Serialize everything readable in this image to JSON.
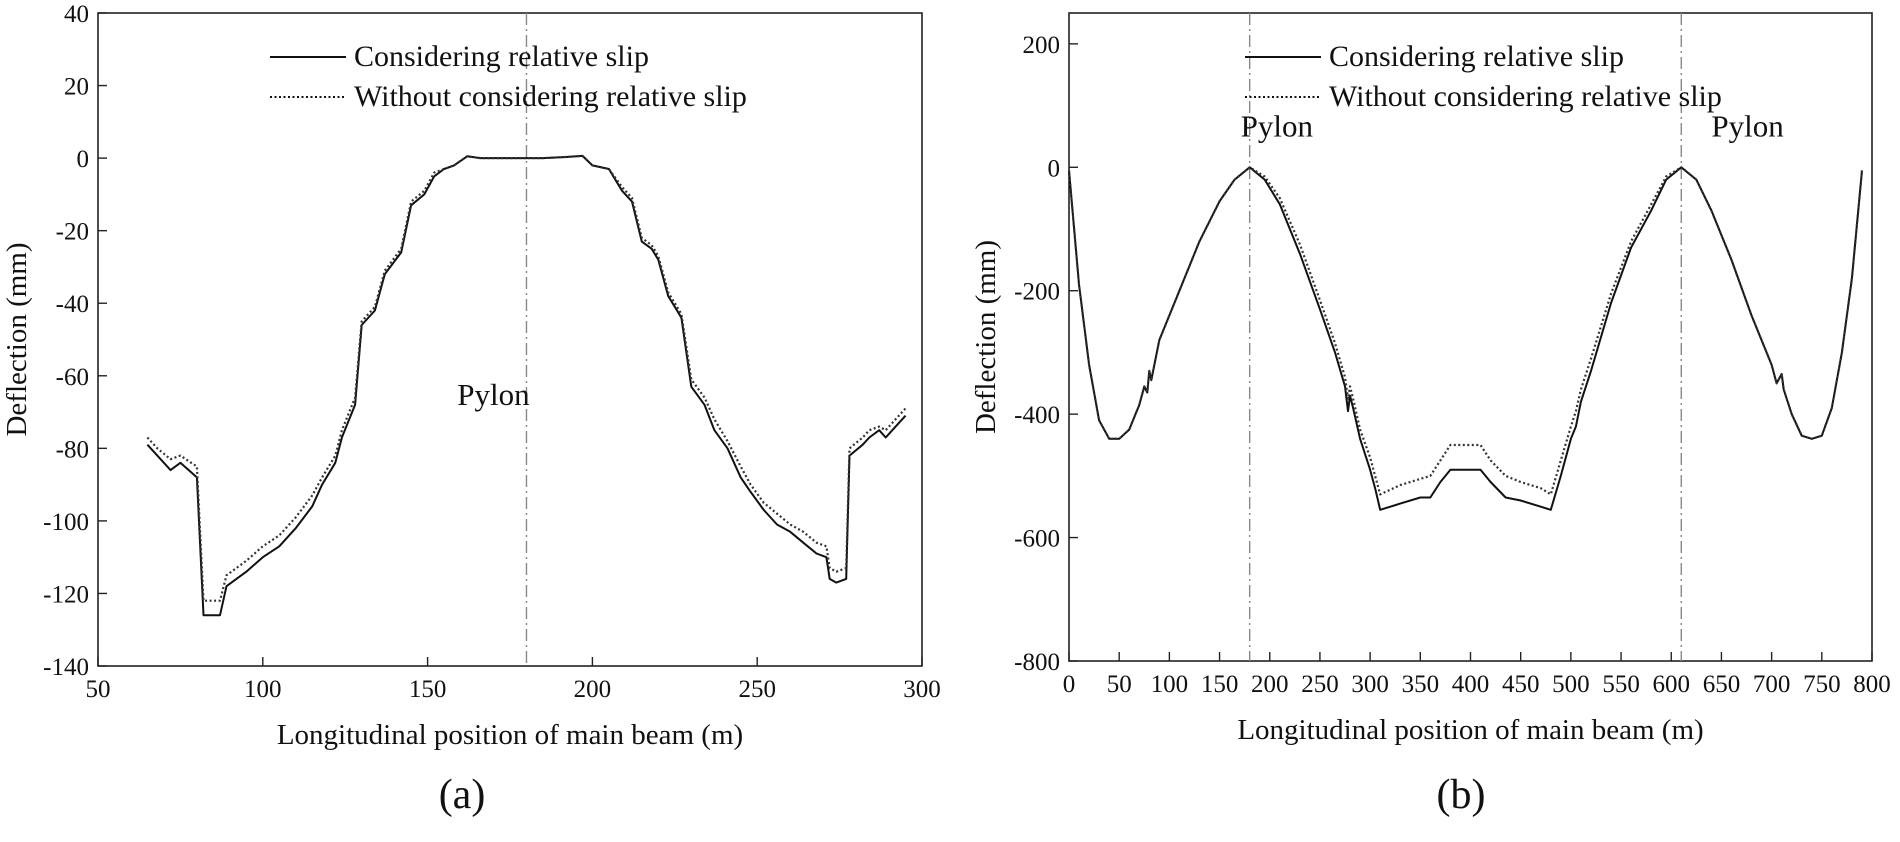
{
  "chart_data": [
    {
      "type": "line",
      "panel_label": "(a)",
      "xlabel": "Longitudinal position of main beam (m)",
      "ylabel": "Deflection (mm)",
      "xlim": [
        50,
        300
      ],
      "ylim": [
        -140,
        40
      ],
      "xticks": [
        50,
        100,
        150,
        200,
        250,
        300
      ],
      "yticks": [
        40,
        20,
        0,
        -20,
        -40,
        -60,
        -80,
        -100,
        -120,
        -140
      ],
      "grid": false,
      "legend_position": "top-center",
      "annotations": [
        {
          "text": "Pylon",
          "x": 159,
          "y": -68
        }
      ],
      "reference_lines": [
        {
          "x": 180,
          "style": "dash-dot"
        }
      ],
      "series": [
        {
          "name": "Considering relative slip",
          "style": "solid",
          "points": [
            [
              65,
              -79
            ],
            [
              68,
              -82
            ],
            [
              72,
              -86
            ],
            [
              75,
              -84
            ],
            [
              80,
              -88
            ],
            [
              82,
              -126
            ],
            [
              87,
              -126
            ],
            [
              89,
              -118
            ],
            [
              95,
              -114
            ],
            [
              100,
              -110
            ],
            [
              105,
              -107
            ],
            [
              110,
              -102
            ],
            [
              115,
              -96
            ],
            [
              118,
              -90
            ],
            [
              122,
              -84
            ],
            [
              124,
              -77
            ],
            [
              128,
              -68
            ],
            [
              130,
              -46
            ],
            [
              134,
              -42
            ],
            [
              137,
              -32
            ],
            [
              142,
              -26
            ],
            [
              145,
              -13
            ],
            [
              149,
              -10
            ],
            [
              152,
              -5
            ],
            [
              155,
              -3
            ],
            [
              158,
              -2
            ],
            [
              162,
              0.5
            ],
            [
              166,
              0
            ],
            [
              175,
              0
            ],
            [
              185,
              0
            ],
            [
              192,
              0.3
            ],
            [
              197,
              0.6
            ],
            [
              200,
              -2
            ],
            [
              205,
              -3
            ],
            [
              209,
              -9
            ],
            [
              212,
              -12
            ],
            [
              215,
              -23
            ],
            [
              218,
              -25
            ],
            [
              220,
              -28
            ],
            [
              223,
              -38
            ],
            [
              227,
              -44
            ],
            [
              230,
              -63
            ],
            [
              234,
              -68
            ],
            [
              237,
              -75
            ],
            [
              241,
              -80
            ],
            [
              245,
              -88
            ],
            [
              248,
              -92
            ],
            [
              252,
              -97
            ],
            [
              256,
              -101
            ],
            [
              260,
              -103
            ],
            [
              264,
              -106
            ],
            [
              268,
              -109
            ],
            [
              271,
              -110
            ],
            [
              272,
              -116
            ],
            [
              274,
              -117
            ],
            [
              277,
              -116
            ],
            [
              278,
              -82
            ],
            [
              282,
              -79
            ],
            [
              284,
              -77
            ],
            [
              287,
              -75
            ],
            [
              289,
              -77
            ],
            [
              292,
              -74
            ],
            [
              295,
              -71
            ]
          ]
        },
        {
          "name": "Without considering relative slip",
          "style": "dotted",
          "points": [
            [
              65,
              -77
            ],
            [
              68,
              -80
            ],
            [
              72,
              -83
            ],
            [
              75,
              -82
            ],
            [
              80,
              -85
            ],
            [
              82,
              -122
            ],
            [
              87,
              -122
            ],
            [
              89,
              -115
            ],
            [
              95,
              -111
            ],
            [
              100,
              -107
            ],
            [
              105,
              -104
            ],
            [
              110,
              -99
            ],
            [
              115,
              -93
            ],
            [
              118,
              -88
            ],
            [
              122,
              -82
            ],
            [
              124,
              -75
            ],
            [
              128,
              -66
            ],
            [
              130,
              -45
            ],
            [
              134,
              -41
            ],
            [
              137,
              -31
            ],
            [
              142,
              -25
            ],
            [
              145,
              -12
            ],
            [
              149,
              -9
            ],
            [
              152,
              -4
            ],
            [
              155,
              -3
            ],
            [
              158,
              -2
            ],
            [
              162,
              0.5
            ],
            [
              166,
              0
            ],
            [
              175,
              0
            ],
            [
              185,
              0
            ],
            [
              192,
              0.3
            ],
            [
              197,
              0.6
            ],
            [
              200,
              -2
            ],
            [
              205,
              -3
            ],
            [
              209,
              -8
            ],
            [
              212,
              -11
            ],
            [
              215,
              -22
            ],
            [
              218,
              -24
            ],
            [
              220,
              -27
            ],
            [
              223,
              -37
            ],
            [
              227,
              -43
            ],
            [
              230,
              -61
            ],
            [
              234,
              -66
            ],
            [
              237,
              -72
            ],
            [
              241,
              -78
            ],
            [
              245,
              -85
            ],
            [
              248,
              -90
            ],
            [
              252,
              -95
            ],
            [
              256,
              -98
            ],
            [
              260,
              -101
            ],
            [
              264,
              -103
            ],
            [
              268,
              -106
            ],
            [
              271,
              -107
            ],
            [
              272,
              -113
            ],
            [
              274,
              -114
            ],
            [
              277,
              -113
            ],
            [
              278,
              -80
            ],
            [
              282,
              -77
            ],
            [
              284,
              -75
            ],
            [
              287,
              -74
            ],
            [
              289,
              -75
            ],
            [
              292,
              -72
            ],
            [
              295,
              -69
            ]
          ]
        }
      ]
    },
    {
      "type": "line",
      "panel_label": "(b)",
      "xlabel": "Longitudinal position of main beam (m)",
      "ylabel": "Deflection (mm)",
      "xlim": [
        0,
        800
      ],
      "ylim": [
        -800,
        250
      ],
      "xticks": [
        0,
        50,
        100,
        150,
        200,
        250,
        300,
        350,
        400,
        450,
        500,
        550,
        600,
        650,
        700,
        750,
        800
      ],
      "yticks": [
        200,
        0,
        -200,
        -400,
        -600,
        -800
      ],
      "grid": false,
      "legend_position": "top-center",
      "annotations": [
        {
          "text": "Pylon",
          "x": 171,
          "y": 50
        },
        {
          "text": "Pylon",
          "x": 640,
          "y": 50
        }
      ],
      "reference_lines": [
        {
          "x": 180,
          "style": "dash-dot"
        },
        {
          "x": 610,
          "style": "dash-dot"
        }
      ],
      "series": [
        {
          "name": "Considering relative slip",
          "style": "solid",
          "points": [
            [
              0,
              -5
            ],
            [
              10,
              -190
            ],
            [
              20,
              -320
            ],
            [
              30,
              -410
            ],
            [
              40,
              -440
            ],
            [
              50,
              -440
            ],
            [
              60,
              -425
            ],
            [
              70,
              -385
            ],
            [
              75,
              -355
            ],
            [
              78,
              -365
            ],
            [
              80,
              -330
            ],
            [
              82,
              -345
            ],
            [
              90,
              -280
            ],
            [
              110,
              -200
            ],
            [
              130,
              -120
            ],
            [
              150,
              -55
            ],
            [
              165,
              -20
            ],
            [
              180,
              0
            ],
            [
              195,
              -20
            ],
            [
              210,
              -60
            ],
            [
              230,
              -140
            ],
            [
              250,
              -230
            ],
            [
              265,
              -300
            ],
            [
              275,
              -355
            ],
            [
              278,
              -395
            ],
            [
              280,
              -370
            ],
            [
              283,
              -390
            ],
            [
              290,
              -440
            ],
            [
              300,
              -490
            ],
            [
              305,
              -520
            ],
            [
              310,
              -555
            ],
            [
              330,
              -545
            ],
            [
              350,
              -535
            ],
            [
              360,
              -535
            ],
            [
              370,
              -510
            ],
            [
              380,
              -490
            ],
            [
              400,
              -490
            ],
            [
              410,
              -490
            ],
            [
              420,
              -510
            ],
            [
              435,
              -535
            ],
            [
              450,
              -540
            ],
            [
              470,
              -550
            ],
            [
              480,
              -555
            ],
            [
              490,
              -500
            ],
            [
              500,
              -440
            ],
            [
              505,
              -420
            ],
            [
              510,
              -380
            ],
            [
              520,
              -330
            ],
            [
              540,
              -220
            ],
            [
              560,
              -130
            ],
            [
              580,
              -70
            ],
            [
              595,
              -20
            ],
            [
              610,
              0
            ],
            [
              625,
              -20
            ],
            [
              640,
              -70
            ],
            [
              660,
              -150
            ],
            [
              680,
              -240
            ],
            [
              700,
              -320
            ],
            [
              705,
              -350
            ],
            [
              710,
              -335
            ],
            [
              712,
              -360
            ],
            [
              720,
              -400
            ],
            [
              730,
              -435
            ],
            [
              740,
              -440
            ],
            [
              750,
              -435
            ],
            [
              760,
              -390
            ],
            [
              770,
              -300
            ],
            [
              780,
              -180
            ],
            [
              790,
              -5
            ]
          ]
        },
        {
          "name": "Without considering relative slip",
          "style": "dotted",
          "points": [
            [
              0,
              -5
            ],
            [
              10,
              -190
            ],
            [
              20,
              -320
            ],
            [
              30,
              -410
            ],
            [
              40,
              -440
            ],
            [
              50,
              -440
            ],
            [
              60,
              -425
            ],
            [
              70,
              -385
            ],
            [
              75,
              -355
            ],
            [
              78,
              -365
            ],
            [
              80,
              -330
            ],
            [
              82,
              -345
            ],
            [
              90,
              -280
            ],
            [
              110,
              -200
            ],
            [
              130,
              -120
            ],
            [
              150,
              -55
            ],
            [
              165,
              -20
            ],
            [
              180,
              0
            ],
            [
              195,
              -15
            ],
            [
              210,
              -50
            ],
            [
              230,
              -125
            ],
            [
              250,
              -215
            ],
            [
              265,
              -285
            ],
            [
              275,
              -340
            ],
            [
              278,
              -375
            ],
            [
              280,
              -355
            ],
            [
              283,
              -375
            ],
            [
              290,
              -425
            ],
            [
              300,
              -470
            ],
            [
              305,
              -500
            ],
            [
              310,
              -530
            ],
            [
              330,
              -515
            ],
            [
              350,
              -505
            ],
            [
              360,
              -500
            ],
            [
              370,
              -475
            ],
            [
              380,
              -450
            ],
            [
              400,
              -450
            ],
            [
              410,
              -450
            ],
            [
              420,
              -475
            ],
            [
              435,
              -500
            ],
            [
              450,
              -510
            ],
            [
              470,
              -520
            ],
            [
              480,
              -530
            ],
            [
              490,
              -475
            ],
            [
              500,
              -420
            ],
            [
              505,
              -395
            ],
            [
              510,
              -360
            ],
            [
              520,
              -310
            ],
            [
              540,
              -205
            ],
            [
              560,
              -120
            ],
            [
              580,
              -60
            ],
            [
              595,
              -15
            ],
            [
              610,
              0
            ],
            [
              625,
              -20
            ],
            [
              640,
              -70
            ],
            [
              660,
              -150
            ],
            [
              680,
              -240
            ],
            [
              700,
              -320
            ],
            [
              705,
              -350
            ],
            [
              710,
              -335
            ],
            [
              712,
              -360
            ],
            [
              720,
              -400
            ],
            [
              730,
              -435
            ],
            [
              740,
              -440
            ],
            [
              750,
              -435
            ],
            [
              760,
              -390
            ],
            [
              770,
              -300
            ],
            [
              780,
              -180
            ],
            [
              790,
              -5
            ]
          ]
        }
      ]
    }
  ]
}
